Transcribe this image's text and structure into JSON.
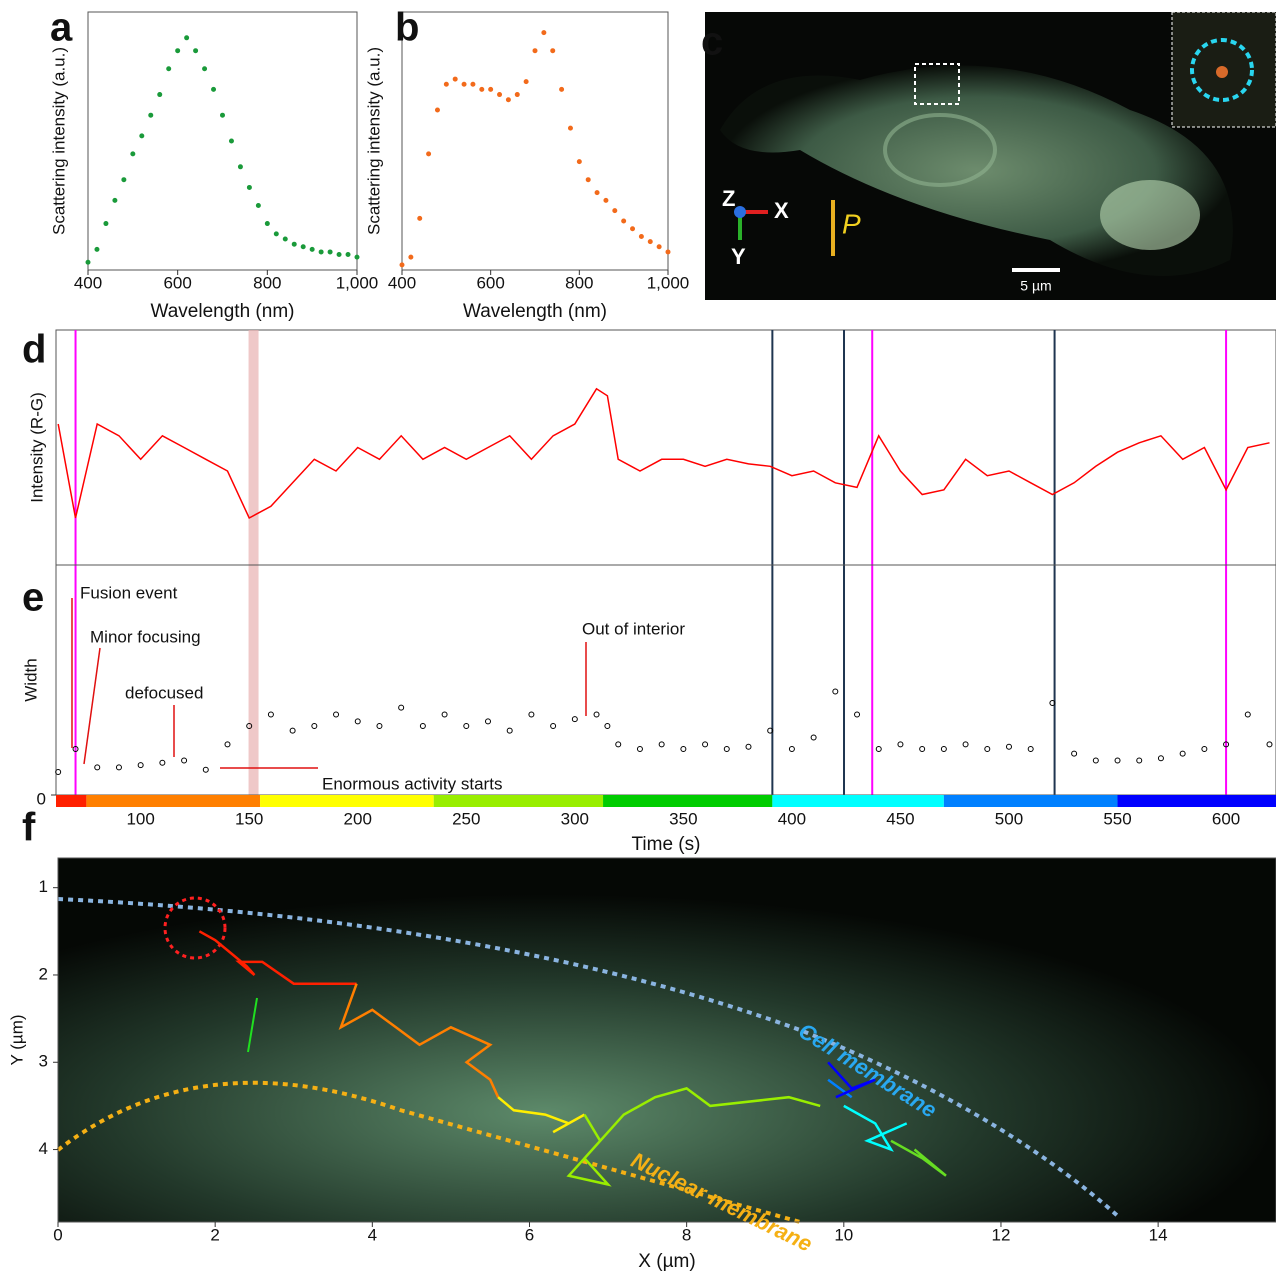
{
  "chart_data": [
    {
      "type": "scatter",
      "panel": "a",
      "xlabel": "Wavelength (nm)",
      "ylabel": "Scattering intensity (a.u.)",
      "color": "#1a9a3a",
      "x": [
        400,
        420,
        440,
        460,
        480,
        500,
        520,
        540,
        560,
        580,
        600,
        620,
        640,
        660,
        680,
        700,
        720,
        740,
        760,
        780,
        800,
        820,
        840,
        860,
        880,
        900,
        920,
        940,
        960,
        980,
        1000
      ],
      "values": [
        0.03,
        0.08,
        0.18,
        0.27,
        0.35,
        0.45,
        0.52,
        0.6,
        0.68,
        0.78,
        0.85,
        0.9,
        0.85,
        0.78,
        0.7,
        0.6,
        0.5,
        0.4,
        0.32,
        0.25,
        0.18,
        0.14,
        0.12,
        0.1,
        0.09,
        0.08,
        0.07,
        0.07,
        0.06,
        0.06,
        0.05
      ],
      "xlim": [
        400,
        1000
      ],
      "xticks": [
        400,
        600,
        800,
        {
          "value": 1000,
          "label": "1,000"
        }
      ],
      "ylim": [
        0,
        1
      ]
    },
    {
      "type": "scatter",
      "panel": "b",
      "xlabel": "Wavelength (nm)",
      "ylabel": "Scattering intensity (a.u.)",
      "color": "#f26a1b",
      "x": [
        400,
        420,
        440,
        460,
        480,
        500,
        520,
        540,
        560,
        580,
        600,
        620,
        640,
        660,
        680,
        700,
        720,
        740,
        760,
        780,
        800,
        820,
        840,
        860,
        880,
        900,
        920,
        940,
        960,
        980,
        1000
      ],
      "values": [
        0.02,
        0.05,
        0.2,
        0.45,
        0.62,
        0.72,
        0.74,
        0.72,
        0.72,
        0.7,
        0.7,
        0.68,
        0.66,
        0.68,
        0.73,
        0.85,
        0.92,
        0.85,
        0.7,
        0.55,
        0.42,
        0.35,
        0.3,
        0.27,
        0.23,
        0.19,
        0.16,
        0.13,
        0.11,
        0.09,
        0.07
      ],
      "xlim": [
        400,
        1000
      ],
      "xticks": [
        400,
        600,
        800,
        {
          "value": 1000,
          "label": "1,000"
        }
      ],
      "ylim": [
        0,
        1
      ]
    },
    {
      "type": "line",
      "panel": "d",
      "ylabel": "Intensity (R-G)",
      "color": "#ff0000",
      "x": [
        62,
        70,
        80,
        90,
        100,
        110,
        120,
        130,
        140,
        150,
        160,
        170,
        180,
        190,
        200,
        210,
        220,
        230,
        240,
        250,
        260,
        270,
        280,
        290,
        300,
        310,
        315,
        320,
        330,
        340,
        350,
        360,
        370,
        380,
        390,
        400,
        410,
        420,
        430,
        440,
        450,
        460,
        470,
        480,
        490,
        500,
        510,
        520,
        530,
        540,
        550,
        560,
        570,
        580,
        590,
        600,
        610,
        620
      ],
      "values": [
        0.6,
        0.2,
        0.6,
        0.55,
        0.45,
        0.55,
        0.5,
        0.45,
        0.4,
        0.2,
        0.25,
        0.35,
        0.45,
        0.4,
        0.5,
        0.45,
        0.55,
        0.45,
        0.5,
        0.45,
        0.5,
        0.55,
        0.45,
        0.55,
        0.6,
        0.75,
        0.72,
        0.45,
        0.4,
        0.45,
        0.45,
        0.42,
        0.45,
        0.43,
        0.42,
        0.38,
        0.4,
        0.35,
        0.33,
        0.55,
        0.4,
        0.3,
        0.32,
        0.45,
        0.38,
        0.4,
        0.35,
        0.3,
        0.35,
        0.42,
        0.48,
        0.52,
        0.55,
        0.45,
        0.5,
        0.32,
        0.5,
        0.52
      ],
      "xlim": [
        61,
        623
      ],
      "ylim": [
        0,
        1
      ],
      "markers": [
        {
          "time": 70,
          "color": "#ff00ff"
        },
        {
          "time": 437,
          "color": "#ff00ff"
        },
        {
          "time": 600,
          "color": "#ff00ff"
        },
        {
          "time": 391,
          "color": "#1f3550"
        },
        {
          "time": 424,
          "color": "#1f3550"
        },
        {
          "time": 521,
          "color": "#1f3550"
        }
      ],
      "band": 152
    },
    {
      "type": "scatter",
      "panel": "e",
      "ylabel": "Width",
      "xlabel": "Time (s)",
      "color": "#000000",
      "x": [
        62,
        70,
        80,
        90,
        100,
        110,
        120,
        130,
        140,
        150,
        160,
        170,
        180,
        190,
        200,
        210,
        220,
        230,
        240,
        250,
        260,
        270,
        280,
        290,
        300,
        310,
        315,
        320,
        330,
        340,
        350,
        360,
        370,
        380,
        390,
        400,
        410,
        420,
        430,
        440,
        450,
        460,
        470,
        480,
        490,
        500,
        510,
        520,
        530,
        540,
        550,
        560,
        570,
        580,
        590,
        600,
        610,
        620
      ],
      "values": [
        0.1,
        0.2,
        0.12,
        0.12,
        0.13,
        0.14,
        0.15,
        0.11,
        0.22,
        0.3,
        0.35,
        0.28,
        0.3,
        0.35,
        0.32,
        0.3,
        0.38,
        0.3,
        0.35,
        0.3,
        0.32,
        0.28,
        0.35,
        0.3,
        0.33,
        0.35,
        0.3,
        0.22,
        0.2,
        0.22,
        0.2,
        0.22,
        0.2,
        0.21,
        0.28,
        0.2,
        0.25,
        0.45,
        0.35,
        0.2,
        0.22,
        0.2,
        0.2,
        0.22,
        0.2,
        0.21,
        0.2,
        0.4,
        0.18,
        0.15,
        0.15,
        0.15,
        0.16,
        0.18,
        0.2,
        0.22,
        0.35,
        0.22
      ],
      "xlim": [
        61,
        623
      ],
      "ylim": [
        0,
        1
      ],
      "yticks": [
        0
      ],
      "xticks": [
        100,
        150,
        200,
        250,
        300,
        350,
        400,
        450,
        500,
        550,
        600
      ],
      "annotations": [
        "Fusion event",
        "Minor focusing",
        "defocused",
        "Out of interior",
        "Enormous activity starts"
      ],
      "colorbar": [
        {
          "start": 61,
          "end": 75,
          "color": "#ff2000"
        },
        {
          "start": 75,
          "end": 155,
          "color": "#ff7f00"
        },
        {
          "start": 155,
          "end": 235,
          "color": "#ffff00"
        },
        {
          "start": 235,
          "end": 313,
          "color": "#99ee00"
        },
        {
          "start": 313,
          "end": 391,
          "color": "#00cc00"
        },
        {
          "start": 391,
          "end": 470,
          "color": "#00ffff"
        },
        {
          "start": 470,
          "end": 550,
          "color": "#0080ff"
        },
        {
          "start": 550,
          "end": 623,
          "color": "#0000ff"
        }
      ]
    },
    {
      "type": "line",
      "panel": "f",
      "xlabel": "X (µm)",
      "ylabel": "Y (µm)",
      "xlim": [
        0,
        15.5
      ],
      "ylim": [
        0.66,
        4.83
      ],
      "y_inverted": true,
      "xticks": [
        0,
        2,
        4,
        6,
        8,
        10,
        12,
        14
      ],
      "yticks": [
        1,
        2,
        3,
        4
      ],
      "annotations": [
        "Cell membrane",
        "Nuclear membrane"
      ],
      "series": [
        {
          "color": "#ff2000",
          "x": [
            1.8,
            2.0,
            2.2,
            2.4,
            2.5,
            2.3,
            2.6,
            3.0,
            3.8
          ],
          "values": [
            1.5,
            1.6,
            1.75,
            1.9,
            2.0,
            1.85,
            1.85,
            2.1,
            2.1
          ]
        },
        {
          "color": "#ff7f00",
          "x": [
            3.8,
            3.6,
            4.0,
            4.3,
            4.6,
            5.0,
            5.5,
            5.2,
            5.5,
            5.6
          ],
          "values": [
            2.1,
            2.6,
            2.4,
            2.6,
            2.8,
            2.6,
            2.8,
            3.0,
            3.2,
            3.4
          ]
        },
        {
          "color": "#ffee00",
          "x": [
            5.6,
            5.8,
            6.2,
            6.5,
            6.3,
            6.7
          ],
          "values": [
            3.4,
            3.55,
            3.6,
            3.7,
            3.8,
            3.6
          ]
        },
        {
          "color": "#99ee00",
          "x": [
            6.7,
            6.9,
            6.5,
            7.0,
            6.7,
            7.2,
            7.6,
            8.0,
            8.3,
            9.3,
            9.7
          ],
          "values": [
            3.6,
            3.9,
            4.3,
            4.4,
            4.1,
            3.6,
            3.4,
            3.3,
            3.5,
            3.4,
            3.5
          ]
        },
        {
          "color": "#66dd22",
          "x": [
            10.6,
            11.0,
            11.3,
            10.9
          ],
          "values": [
            3.9,
            4.1,
            4.3,
            4.0
          ]
        },
        {
          "color": "#00ffff",
          "x": [
            10.0,
            10.4,
            10.6,
            10.3,
            10.8
          ],
          "values": [
            3.5,
            3.7,
            4.0,
            3.9,
            3.7
          ]
        },
        {
          "color": "#0080ff",
          "x": [
            9.8,
            10.1
          ],
          "values": [
            3.2,
            3.4
          ]
        },
        {
          "color": "#0000ff",
          "x": [
            9.8,
            10.1,
            10.4,
            9.9
          ],
          "values": [
            3.0,
            3.3,
            3.2,
            3.4
          ]
        }
      ]
    }
  ],
  "image_panel": {
    "panel": "c",
    "axis_z": "Z",
    "axis_x": "X",
    "axis_y": "Y",
    "polarization": "P",
    "scale_bar": "5 µm"
  }
}
